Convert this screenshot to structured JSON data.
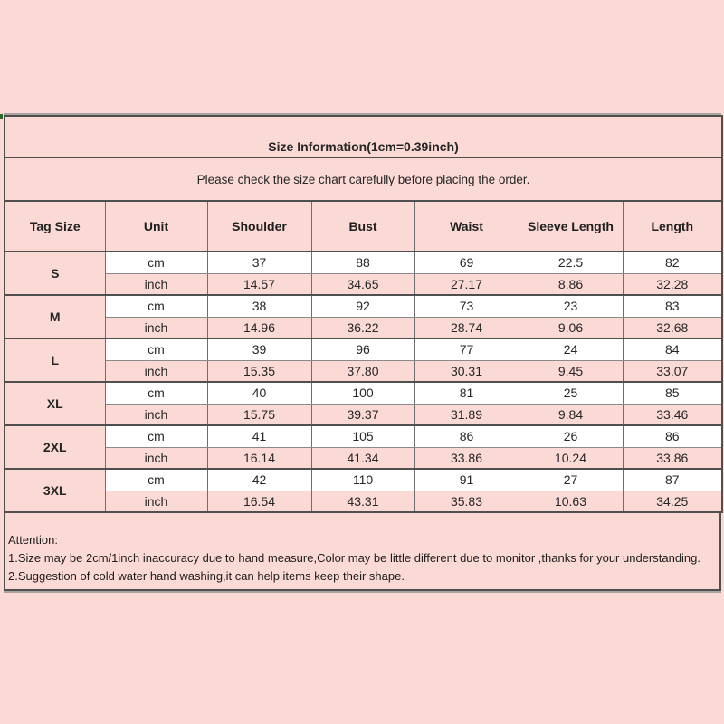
{
  "page": {
    "background_color": "#fbd9d5",
    "type": "product-size-chart"
  },
  "colors": {
    "page_pink": "#fbd9d5",
    "cell_white": "#ffffff",
    "border_dark": "#4f4f4f",
    "border_light": "#6e6e6e",
    "text": "#262626"
  },
  "table": {
    "title": "Size Information(1cm=0.39inch)",
    "subtitle": "Please check the size chart carefully before placing the order.",
    "headers": [
      "Tag Size",
      "Unit",
      "Shoulder",
      "Bust",
      "Waist",
      "Sleeve Length",
      "Length"
    ],
    "units": [
      "cm",
      "inch"
    ],
    "rows": [
      {
        "size": "S",
        "cm": [
          "37",
          "88",
          "69",
          "22.5",
          "82"
        ],
        "inch": [
          "14.57",
          "34.65",
          "27.17",
          "8.86",
          "32.28"
        ]
      },
      {
        "size": "M",
        "cm": [
          "38",
          "92",
          "73",
          "23",
          "83"
        ],
        "inch": [
          "14.96",
          "36.22",
          "28.74",
          "9.06",
          "32.68"
        ]
      },
      {
        "size": "L",
        "cm": [
          "39",
          "96",
          "77",
          "24",
          "84"
        ],
        "inch": [
          "15.35",
          "37.80",
          "30.31",
          "9.45",
          "33.07"
        ]
      },
      {
        "size": "XL",
        "cm": [
          "40",
          "100",
          "81",
          "25",
          "85"
        ],
        "inch": [
          "15.75",
          "39.37",
          "31.89",
          "9.84",
          "33.46"
        ]
      },
      {
        "size": "2XL",
        "cm": [
          "41",
          "105",
          "86",
          "26",
          "86"
        ],
        "inch": [
          "16.14",
          "41.34",
          "33.86",
          "10.24",
          "33.86"
        ]
      },
      {
        "size": "3XL",
        "cm": [
          "42",
          "110",
          "91",
          "27",
          "87"
        ],
        "inch": [
          "16.54",
          "43.31",
          "35.83",
          "10.63",
          "34.25"
        ]
      }
    ]
  },
  "attention": {
    "heading": "Attention:",
    "lines": [
      "1.Size may be 2cm/1inch inaccuracy due to hand measure,Color may be little different due to monitor ,thanks for your understanding.",
      "2.Suggestion of cold water hand washing,it can help items keep their shape."
    ]
  }
}
